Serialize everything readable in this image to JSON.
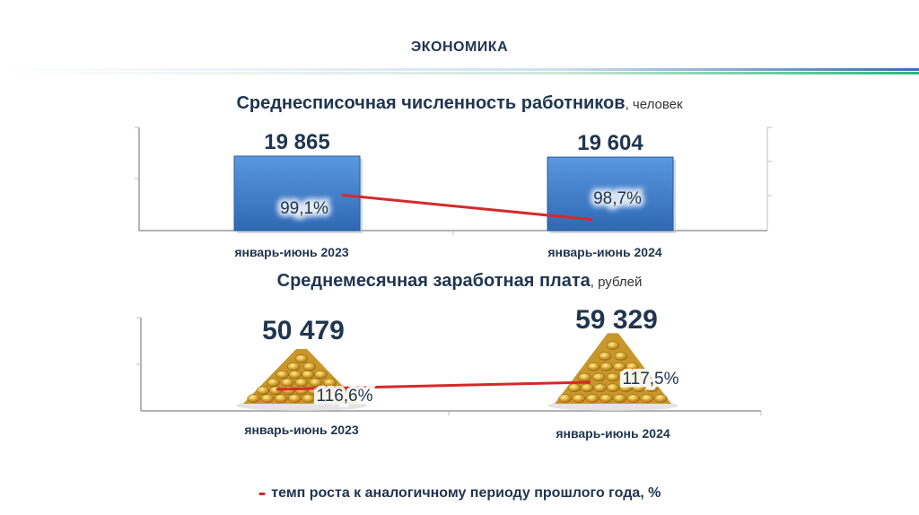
{
  "header": {
    "title": "ЭКОНОМИКА",
    "accent_colors": [
      "#3a6fb5",
      "#2eb67d"
    ]
  },
  "legend": {
    "marker": "-",
    "text": "темп роста к аналогичному периоду прошлого года, %",
    "color": "#d42a2a"
  },
  "chart_data": [
    {
      "type": "bar",
      "title": "Среднесписочная численность работников",
      "unit": ", человек",
      "categories": [
        "январь-июнь 2023",
        "январь-июнь 2024"
      ],
      "values": [
        19865,
        19604
      ],
      "value_labels": [
        "19 865",
        "19 604"
      ],
      "growth_rate": [
        99.1,
        98.7
      ],
      "growth_labels": [
        "99,1%",
        "98,7%"
      ],
      "bar_color": "#3f7cc6",
      "line_color": "#d42a2a"
    },
    {
      "type": "bar",
      "title": "Среднемесячная заработная плата",
      "unit": ", рублей",
      "categories": [
        "январь-июнь 2023",
        "январь-июнь 2024"
      ],
      "values": [
        50479,
        59329
      ],
      "value_labels": [
        "50 479",
        "59 329"
      ],
      "growth_rate": [
        116.6,
        117.5
      ],
      "growth_labels": [
        "116,6%",
        "117,5%"
      ],
      "marker_icon": "coin-pyramid-icon",
      "line_color": "#d42a2a"
    }
  ]
}
